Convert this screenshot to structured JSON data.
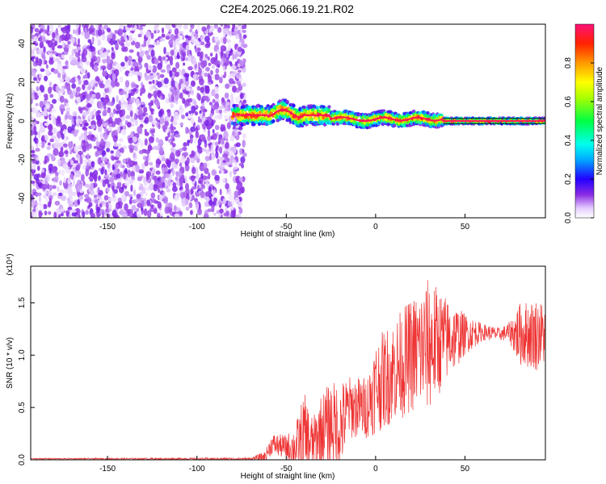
{
  "title": "C2E4.2025.066.19.21.R02",
  "chart_data": [
    {
      "type": "heatmap",
      "xlabel": "Height of straight line (km)",
      "ylabel": "Frequency (Hz)",
      "xlim": [
        -193,
        95
      ],
      "ylim": [
        -50,
        50
      ],
      "xticks": [
        -150,
        -100,
        -50,
        0,
        50
      ],
      "yticks": [
        -40,
        -20,
        0,
        20,
        40
      ],
      "colorbar": {
        "label": "Normalized spectral amplitude",
        "range": [
          0,
          1
        ],
        "ticks": [
          "0.0",
          "0.2",
          "0.4",
          "0.6",
          "0.8"
        ],
        "tick_values": [
          0,
          0.2,
          0.4,
          0.6,
          0.8
        ]
      },
      "regions": [
        {
          "x": [
            -193,
            -73
          ],
          "freq": [
            -50,
            50
          ],
          "amplitude": [
            0.02,
            0.12
          ]
        },
        {
          "x": [
            -80,
            -25
          ],
          "freq": [
            -4,
            10
          ],
          "amplitude": [
            0.1,
            0.95
          ]
        },
        {
          "x": [
            -25,
            38
          ],
          "freq": [
            -5,
            4
          ],
          "amplitude": [
            0.1,
            0.95
          ]
        },
        {
          "x": [
            38,
            95
          ],
          "freq": [
            -1,
            1
          ],
          "amplitude": [
            0.95,
            1.0
          ]
        }
      ]
    },
    {
      "type": "line",
      "xlabel": "Height of straight line (km)",
      "ylabel": "SNR (10 * v/v)",
      "y_multiplier": "(x10⁴)",
      "xlim": [
        -193,
        95
      ],
      "ylim": [
        0,
        1.85
      ],
      "xticks": [
        -150,
        -100,
        -50,
        0,
        50
      ],
      "yticks": [
        "0.0",
        "0.5",
        "1.0",
        "1.5"
      ],
      "ytick_values": [
        0,
        0.5,
        1.0,
        1.5
      ],
      "series": [
        {
          "color": "#ee3333",
          "envelope": [
            {
              "x": -193,
              "base": 0.01,
              "amp": 0.005
            },
            {
              "x": -70,
              "base": 0.01,
              "amp": 0.01
            },
            {
              "x": -62,
              "base": 0.03,
              "amp": 0.05
            },
            {
              "x": -58,
              "base": 0.15,
              "amp": 0.1
            },
            {
              "x": -50,
              "base": 0.12,
              "amp": 0.12
            },
            {
              "x": -45,
              "base": 0.12,
              "amp": 0.2
            },
            {
              "x": -40,
              "base": 0.2,
              "amp": 0.45
            },
            {
              "x": -35,
              "base": 0.15,
              "amp": 0.25
            },
            {
              "x": -30,
              "base": 0.3,
              "amp": 0.35
            },
            {
              "x": -25,
              "base": 0.35,
              "amp": 0.4
            },
            {
              "x": -20,
              "base": 0.3,
              "amp": 0.45
            },
            {
              "x": -15,
              "base": 0.5,
              "amp": 0.3
            },
            {
              "x": -5,
              "base": 0.5,
              "amp": 0.3
            },
            {
              "x": 0,
              "base": 0.7,
              "amp": 0.45
            },
            {
              "x": 10,
              "base": 0.85,
              "amp": 0.5
            },
            {
              "x": 20,
              "base": 1.0,
              "amp": 0.55
            },
            {
              "x": 30,
              "base": 1.1,
              "amp": 0.65
            },
            {
              "x": 40,
              "base": 1.15,
              "amp": 0.4
            },
            {
              "x": 50,
              "base": 1.2,
              "amp": 0.2
            },
            {
              "x": 60,
              "base": 1.22,
              "amp": 0.08
            },
            {
              "x": 70,
              "base": 1.2,
              "amp": 0.06
            },
            {
              "x": 75,
              "base": 1.22,
              "amp": 0.1
            },
            {
              "x": 80,
              "base": 1.2,
              "amp": 0.3
            },
            {
              "x": 90,
              "base": 1.2,
              "amp": 0.35
            },
            {
              "x": 95,
              "base": 1.2,
              "amp": 0.3
            }
          ]
        }
      ]
    }
  ]
}
